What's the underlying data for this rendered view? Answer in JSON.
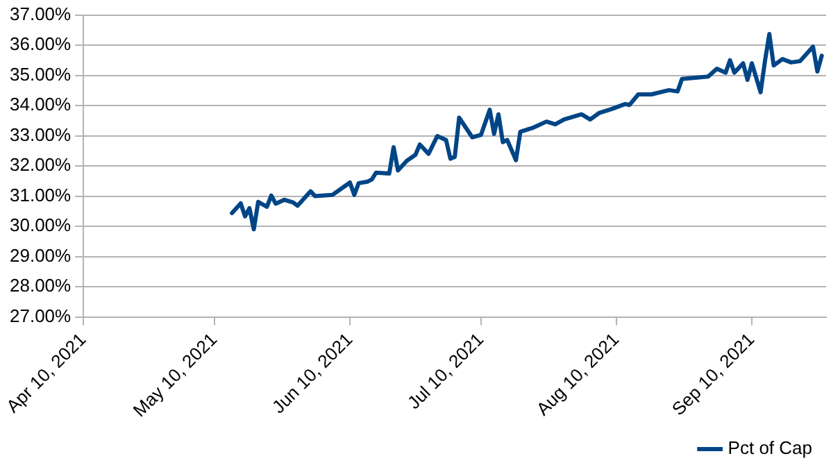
{
  "chart_data": {
    "type": "line",
    "legend": "bottom right",
    "grid": "y",
    "marker": "none",
    "line_style": "solid",
    "xlim": [
      "2021-04-10",
      "2021-09-27"
    ],
    "xticks": [
      {
        "value": "2021-04-10",
        "label": "Apr 10, 2021"
      },
      {
        "value": "2021-05-10",
        "label": "May 10, 2021"
      },
      {
        "value": "2021-06-10",
        "label": "Jun 10, 2021"
      },
      {
        "value": "2021-07-10",
        "label": "Jul 10, 2021"
      },
      {
        "value": "2021-08-10",
        "label": "Aug 10, 2021"
      },
      {
        "value": "2021-09-10",
        "label": "Sep 10, 2021"
      }
    ],
    "ylim": [
      27,
      37
    ],
    "yticks": [
      {
        "value": 27,
        "label": "27.00%"
      },
      {
        "value": 28,
        "label": "28.00%"
      },
      {
        "value": 29,
        "label": "29.00%"
      },
      {
        "value": 30,
        "label": "30.00%"
      },
      {
        "value": 31,
        "label": "31.00%"
      },
      {
        "value": 32,
        "label": "32.00%"
      },
      {
        "value": 33,
        "label": "33.00%"
      },
      {
        "value": 34,
        "label": "34.00%"
      },
      {
        "value": 35,
        "label": "35.00%"
      },
      {
        "value": 36,
        "label": "36.00%"
      },
      {
        "value": 37,
        "label": "37.00%"
      }
    ],
    "x": [
      "2021-05-14",
      "2021-05-16",
      "2021-05-17",
      "2021-05-18",
      "2021-05-19",
      "2021-05-20",
      "2021-05-22",
      "2021-05-23",
      "2021-05-24",
      "2021-05-26",
      "2021-05-28",
      "2021-05-29",
      "2021-06-01",
      "2021-06-02",
      "2021-06-06",
      "2021-06-10",
      "2021-06-11",
      "2021-06-12",
      "2021-06-14",
      "2021-06-15",
      "2021-06-16",
      "2021-06-19",
      "2021-06-20",
      "2021-06-21",
      "2021-06-23",
      "2021-06-25",
      "2021-06-26",
      "2021-06-28",
      "2021-06-30",
      "2021-07-02",
      "2021-07-03",
      "2021-07-04",
      "2021-07-05",
      "2021-07-08",
      "2021-07-10",
      "2021-07-12",
      "2021-07-13",
      "2021-07-14",
      "2021-07-15",
      "2021-07-16",
      "2021-07-18",
      "2021-07-19",
      "2021-07-22",
      "2021-07-25",
      "2021-07-27",
      "2021-07-29",
      "2021-08-02",
      "2021-08-04",
      "2021-08-06",
      "2021-08-09",
      "2021-08-12",
      "2021-08-13",
      "2021-08-15",
      "2021-08-18",
      "2021-08-22",
      "2021-08-24",
      "2021-08-25",
      "2021-08-31",
      "2021-09-02",
      "2021-09-04",
      "2021-09-05",
      "2021-09-06",
      "2021-09-08",
      "2021-09-09",
      "2021-09-10",
      "2021-09-12",
      "2021-09-13",
      "2021-09-14",
      "2021-09-15",
      "2021-09-17",
      "2021-09-19",
      "2021-09-21",
      "2021-09-24",
      "2021-09-25",
      "2021-09-26"
    ],
    "series": [
      {
        "name": "Pct of Cap",
        "color": "#004586",
        "values": [
          30.44,
          30.76,
          30.33,
          30.6,
          29.9,
          30.81,
          30.65,
          31.02,
          30.75,
          30.88,
          30.79,
          30.68,
          31.16,
          31.0,
          31.04,
          31.45,
          31.04,
          31.43,
          31.48,
          31.55,
          31.78,
          31.75,
          32.62,
          31.85,
          32.17,
          32.37,
          32.71,
          32.4,
          32.99,
          32.86,
          32.24,
          32.3,
          33.6,
          32.95,
          33.03,
          33.86,
          33.06,
          33.71,
          32.79,
          32.86,
          32.19,
          33.13,
          33.27,
          33.47,
          33.38,
          33.54,
          33.71,
          33.54,
          33.75,
          33.89,
          34.05,
          34.02,
          34.37,
          34.37,
          34.51,
          34.47,
          34.88,
          34.96,
          35.22,
          35.09,
          35.5,
          35.09,
          35.4,
          34.85,
          35.4,
          34.44,
          35.47,
          36.37,
          35.33,
          35.54,
          35.43,
          35.47,
          35.95,
          35.13,
          35.65
        ]
      }
    ]
  }
}
